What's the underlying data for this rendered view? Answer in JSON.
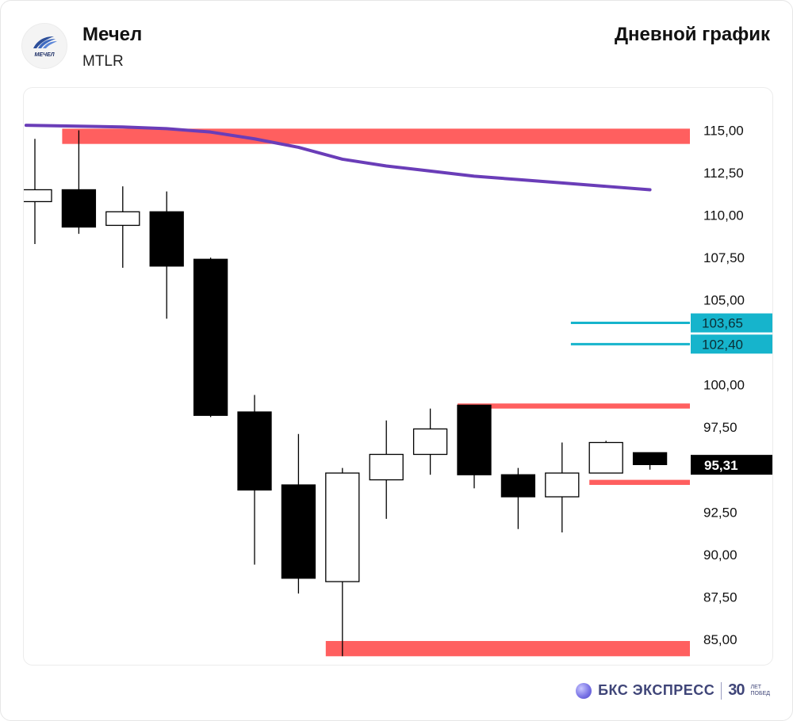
{
  "header": {
    "company": "Мечел",
    "ticker": "MTLR",
    "period_label": "Дневной график",
    "logo_text": "МЕЧЕЛ"
  },
  "footer": {
    "brand": "БКС ЭКСПРЕСС",
    "years": "30",
    "years_small_1": "ЛЕТ",
    "years_small_2": "ПОБЕД"
  },
  "colors": {
    "zone": "#ff5f5f",
    "ma": "#6a3db8",
    "cyan": "#16b4cc",
    "bear": "#000000",
    "bull": "#ffffff"
  },
  "chart_data": {
    "type": "candlestick",
    "title": "",
    "ylim": [
      83.5,
      117.5
    ],
    "y_ticks": [
      85,
      87.5,
      90,
      92.5,
      95,
      97.5,
      100,
      102.5,
      105,
      107.5,
      110,
      112.5,
      115
    ],
    "y_tick_labels": [
      "85,00",
      "87,50",
      "90,00",
      "92,50",
      "",
      "97,50",
      "100,00",
      "",
      "105,00",
      "107,50",
      "110,00",
      "112,50",
      "115,00"
    ],
    "candles": [
      {
        "open": 110.8,
        "high": 114.5,
        "low": 108.3,
        "close": 111.5
      },
      {
        "open": 111.5,
        "high": 115.0,
        "low": 108.9,
        "close": 109.3
      },
      {
        "open": 109.4,
        "high": 111.7,
        "low": 106.9,
        "close": 110.2
      },
      {
        "open": 110.2,
        "high": 111.4,
        "low": 103.9,
        "close": 107.0
      },
      {
        "open": 107.4,
        "high": 107.5,
        "low": 98.1,
        "close": 98.2
      },
      {
        "open": 98.4,
        "high": 99.4,
        "low": 89.4,
        "close": 93.8
      },
      {
        "open": 94.1,
        "high": 97.1,
        "low": 87.7,
        "close": 88.6
      },
      {
        "open": 88.4,
        "high": 95.1,
        "low": 84.0,
        "close": 94.8
      },
      {
        "open": 94.4,
        "high": 97.9,
        "low": 92.1,
        "close": 95.9
      },
      {
        "open": 95.9,
        "high": 98.6,
        "low": 94.7,
        "close": 97.4
      },
      {
        "open": 98.8,
        "high": 98.8,
        "low": 93.9,
        "close": 94.7
      },
      {
        "open": 94.7,
        "high": 95.1,
        "low": 91.5,
        "close": 93.4
      },
      {
        "open": 93.4,
        "high": 96.6,
        "low": 91.3,
        "close": 94.8
      },
      {
        "open": 94.8,
        "high": 96.7,
        "low": 94.8,
        "close": 96.6
      },
      {
        "open": 96.0,
        "high": 96.0,
        "low": 95.0,
        "close": 95.3
      }
    ],
    "moving_average": {
      "x": [
        -0.2,
        2.0,
        3.0,
        4.0,
        5.0,
        6.0,
        7.0,
        8.0,
        9.0,
        10.0,
        11.0,
        12.0,
        13.0,
        14.0
      ],
      "values": [
        115.3,
        115.2,
        115.1,
        114.9,
        114.5,
        114.0,
        113.3,
        112.9,
        112.6,
        112.3,
        112.1,
        111.9,
        111.7,
        111.5
      ]
    },
    "zones": [
      {
        "x_start": 1.0,
        "x_end": 15.0,
        "y_low": 114.2,
        "y_high": 115.1
      },
      {
        "x_start": 7.0,
        "x_end": 15.0,
        "y_low": 84.0,
        "y_high": 84.9
      },
      {
        "x_start": 10.0,
        "x_end": 15.0,
        "y_low": 98.6,
        "y_high": 98.9
      },
      {
        "x_start": 13.0,
        "x_end": 15.0,
        "y_low": 94.1,
        "y_high": 94.4
      }
    ],
    "levels": [
      {
        "x_start": 12.2,
        "y": 103.65,
        "label": "103,65"
      },
      {
        "x_start": 12.2,
        "y": 102.4,
        "label": "102,40"
      }
    ],
    "last_price": {
      "y": 95.31,
      "label": "95,31"
    }
  }
}
